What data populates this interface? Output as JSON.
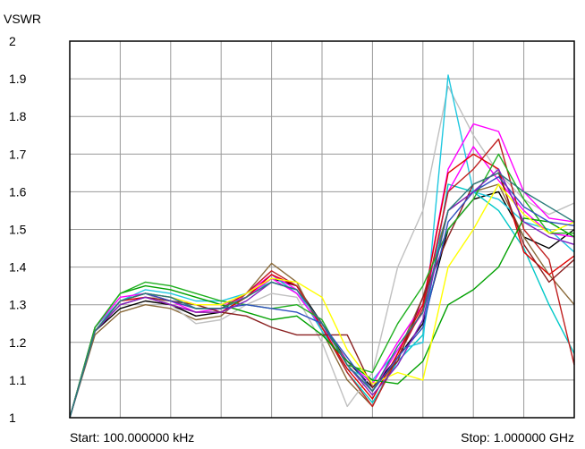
{
  "chart_data": {
    "type": "line",
    "ylabel": "VSWR",
    "ylim": [
      1,
      2
    ],
    "yticks": [
      "1",
      "1.1",
      "1.2",
      "1.3",
      "1.4",
      "1.5",
      "1.6",
      "1.7",
      "1.8",
      "1.9",
      "2"
    ],
    "xlim": [
      0,
      10
    ],
    "x_divisions": 10,
    "grid": true,
    "start_label": "Start: 100.000000 kHz",
    "stop_label": "Stop: 1.000000 GHz",
    "x": [
      0,
      0.5,
      1,
      1.5,
      2,
      2.5,
      3,
      3.5,
      4,
      4.5,
      5,
      5.5,
      6,
      6.5,
      7,
      7.5,
      8,
      8.5,
      9,
      9.5,
      10
    ],
    "series": [
      {
        "color": "#000000",
        "values": [
          1.0,
          1.23,
          1.29,
          1.31,
          1.3,
          1.27,
          1.28,
          1.32,
          1.37,
          1.35,
          1.25,
          1.15,
          1.08,
          1.16,
          1.25,
          1.5,
          1.58,
          1.6,
          1.48,
          1.45,
          1.5
        ]
      },
      {
        "color": "#8a6a3a",
        "values": [
          1.0,
          1.22,
          1.28,
          1.3,
          1.29,
          1.26,
          1.27,
          1.33,
          1.41,
          1.36,
          1.23,
          1.1,
          1.03,
          1.17,
          1.32,
          1.55,
          1.6,
          1.62,
          1.48,
          1.38,
          1.3
        ]
      },
      {
        "color": "#c0c0c0",
        "values": [
          1.0,
          1.24,
          1.31,
          1.33,
          1.3,
          1.25,
          1.26,
          1.3,
          1.33,
          1.32,
          1.2,
          1.03,
          1.12,
          1.4,
          1.55,
          1.88,
          1.75,
          1.65,
          1.58,
          1.54,
          1.57
        ]
      },
      {
        "color": "#00c8c8",
        "values": [
          1.0,
          1.23,
          1.31,
          1.33,
          1.32,
          1.29,
          1.29,
          1.32,
          1.38,
          1.33,
          1.24,
          1.12,
          1.04,
          1.15,
          1.22,
          1.62,
          1.6,
          1.55,
          1.45,
          1.3,
          1.17
        ]
      },
      {
        "color": "#20c8e0",
        "values": [
          1.0,
          1.24,
          1.31,
          1.34,
          1.33,
          1.31,
          1.31,
          1.33,
          1.36,
          1.34,
          1.23,
          1.13,
          1.1,
          1.18,
          1.2,
          1.91,
          1.6,
          1.58,
          1.52,
          1.5,
          1.44
        ]
      },
      {
        "color": "#ff00ff",
        "values": [
          1.0,
          1.24,
          1.32,
          1.33,
          1.31,
          1.28,
          1.29,
          1.33,
          1.38,
          1.34,
          1.25,
          1.14,
          1.07,
          1.18,
          1.28,
          1.6,
          1.72,
          1.63,
          1.55,
          1.49,
          1.48
        ]
      },
      {
        "color": "#ff00ff",
        "values": [
          1.0,
          1.23,
          1.31,
          1.33,
          1.32,
          1.3,
          1.3,
          1.32,
          1.37,
          1.33,
          1.24,
          1.15,
          1.09,
          1.2,
          1.3,
          1.66,
          1.78,
          1.76,
          1.6,
          1.53,
          1.52
        ]
      },
      {
        "color": "#e00000",
        "values": [
          1.0,
          1.23,
          1.31,
          1.32,
          1.3,
          1.28,
          1.28,
          1.32,
          1.38,
          1.35,
          1.24,
          1.13,
          1.05,
          1.17,
          1.3,
          1.65,
          1.7,
          1.66,
          1.44,
          1.38,
          1.43
        ]
      },
      {
        "color": "#c02020",
        "values": [
          1.0,
          1.23,
          1.31,
          1.33,
          1.31,
          1.29,
          1.29,
          1.33,
          1.39,
          1.35,
          1.24,
          1.12,
          1.03,
          1.16,
          1.29,
          1.6,
          1.66,
          1.74,
          1.5,
          1.42,
          1.14
        ]
      },
      {
        "color": "#8a2020",
        "values": [
          1.0,
          1.23,
          1.3,
          1.32,
          1.31,
          1.3,
          1.28,
          1.27,
          1.24,
          1.22,
          1.22,
          1.22,
          1.08,
          1.15,
          1.32,
          1.48,
          1.62,
          1.65,
          1.46,
          1.36,
          1.42
        ]
      },
      {
        "color": "#00a000",
        "values": [
          1.0,
          1.24,
          1.33,
          1.35,
          1.34,
          1.32,
          1.3,
          1.28,
          1.26,
          1.27,
          1.22,
          1.15,
          1.1,
          1.09,
          1.15,
          1.3,
          1.34,
          1.4,
          1.53,
          1.52,
          1.48
        ]
      },
      {
        "color": "#20b020",
        "values": [
          1.0,
          1.24,
          1.33,
          1.36,
          1.35,
          1.33,
          1.31,
          1.3,
          1.29,
          1.3,
          1.26,
          1.14,
          1.12,
          1.25,
          1.35,
          1.5,
          1.58,
          1.7,
          1.58,
          1.49,
          1.49
        ]
      },
      {
        "color": "#ffff00",
        "values": [
          1.0,
          1.23,
          1.31,
          1.33,
          1.32,
          1.3,
          1.3,
          1.33,
          1.37,
          1.36,
          1.32,
          1.18,
          1.09,
          1.12,
          1.1,
          1.4,
          1.5,
          1.62,
          1.54,
          1.49,
          1.52
        ]
      },
      {
        "color": "#3050c0",
        "values": [
          1.0,
          1.23,
          1.31,
          1.33,
          1.31,
          1.29,
          1.29,
          1.3,
          1.29,
          1.28,
          1.25,
          1.16,
          1.07,
          1.16,
          1.24,
          1.52,
          1.6,
          1.64,
          1.56,
          1.52,
          1.51
        ]
      },
      {
        "color": "#8020c0",
        "values": [
          1.0,
          1.23,
          1.3,
          1.32,
          1.3,
          1.28,
          1.28,
          1.31,
          1.36,
          1.34,
          1.25,
          1.14,
          1.06,
          1.14,
          1.26,
          1.55,
          1.6,
          1.66,
          1.52,
          1.48,
          1.46
        ]
      },
      {
        "color": "#2a7a7a",
        "values": [
          1.0,
          1.23,
          1.31,
          1.33,
          1.32,
          1.29,
          1.29,
          1.32,
          1.36,
          1.34,
          1.25,
          1.14,
          1.07,
          1.19,
          1.28,
          1.55,
          1.62,
          1.65,
          1.6,
          1.56,
          1.52
        ]
      }
    ]
  }
}
